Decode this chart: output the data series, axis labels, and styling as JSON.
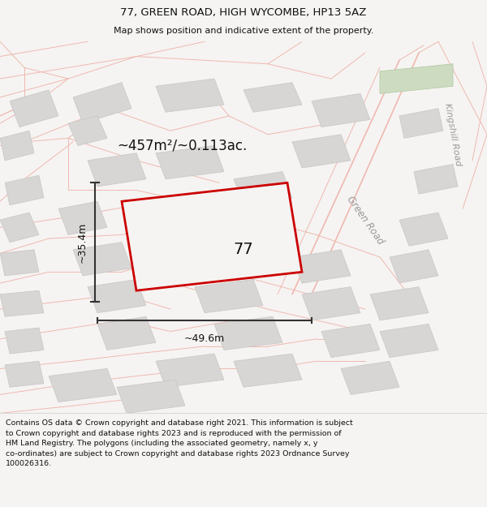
{
  "title_line1": "77, GREEN ROAD, HIGH WYCOMBE, HP13 5AZ",
  "title_line2": "Map shows position and indicative extent of the property.",
  "area_label": "~457m²/~0.113ac.",
  "property_number": "77",
  "dim_width": "~49.6m",
  "dim_height": "~35.4m",
  "road_label1": "Green Road",
  "road_label2": "Kingshill Road",
  "footer_text": "Contains OS data © Crown copyright and database right 2021. This information is subject to Crown copyright and database rights 2023 and is reproduced with the permission of HM Land Registry. The polygons (including the associated geometry, namely x, y co-ordinates) are subject to Crown copyright and database rights 2023 Ordnance Survey 100026316.",
  "bg_color": "#f5f4f2",
  "map_bg": "#f5f4f2",
  "property_fill": "#f5f4f2",
  "property_edge": "#cc0000",
  "road_color": "#f0b8b0",
  "road_fill": "#f5f4f2",
  "building_color": "#d8d6d4",
  "building_edge": "#c8c6c4",
  "footer_bg": "#ffffff",
  "title_color": "#111111",
  "dim_color": "#222222",
  "road_label_color": "#999999",
  "green_bldg_color": "#cddcc0"
}
